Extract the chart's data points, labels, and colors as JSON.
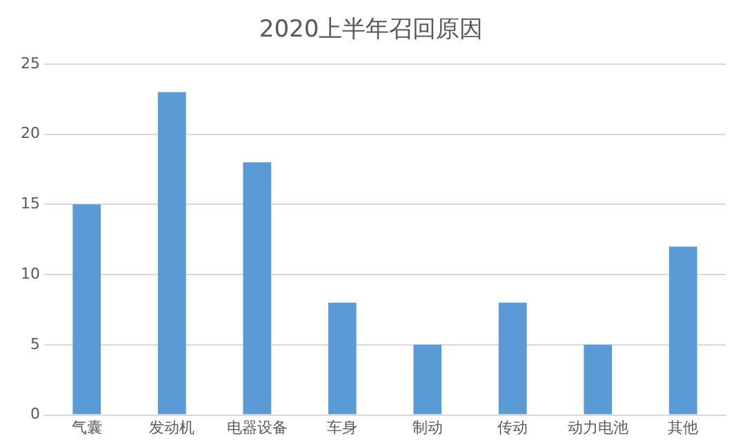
{
  "chart_data": {
    "type": "bar",
    "title": "2020上半年召回原因",
    "categories": [
      "气囊",
      "发动机",
      "电器设备",
      "车身",
      "制动",
      "传动",
      "动力电池",
      "其他"
    ],
    "values": [
      15,
      23,
      18,
      8,
      5,
      8,
      5,
      12
    ],
    "color": "#5b9bd5",
    "ylim": [
      0,
      25
    ],
    "yticks": [
      0,
      5,
      10,
      15,
      20,
      25
    ],
    "grid": "y",
    "legend": false
  }
}
